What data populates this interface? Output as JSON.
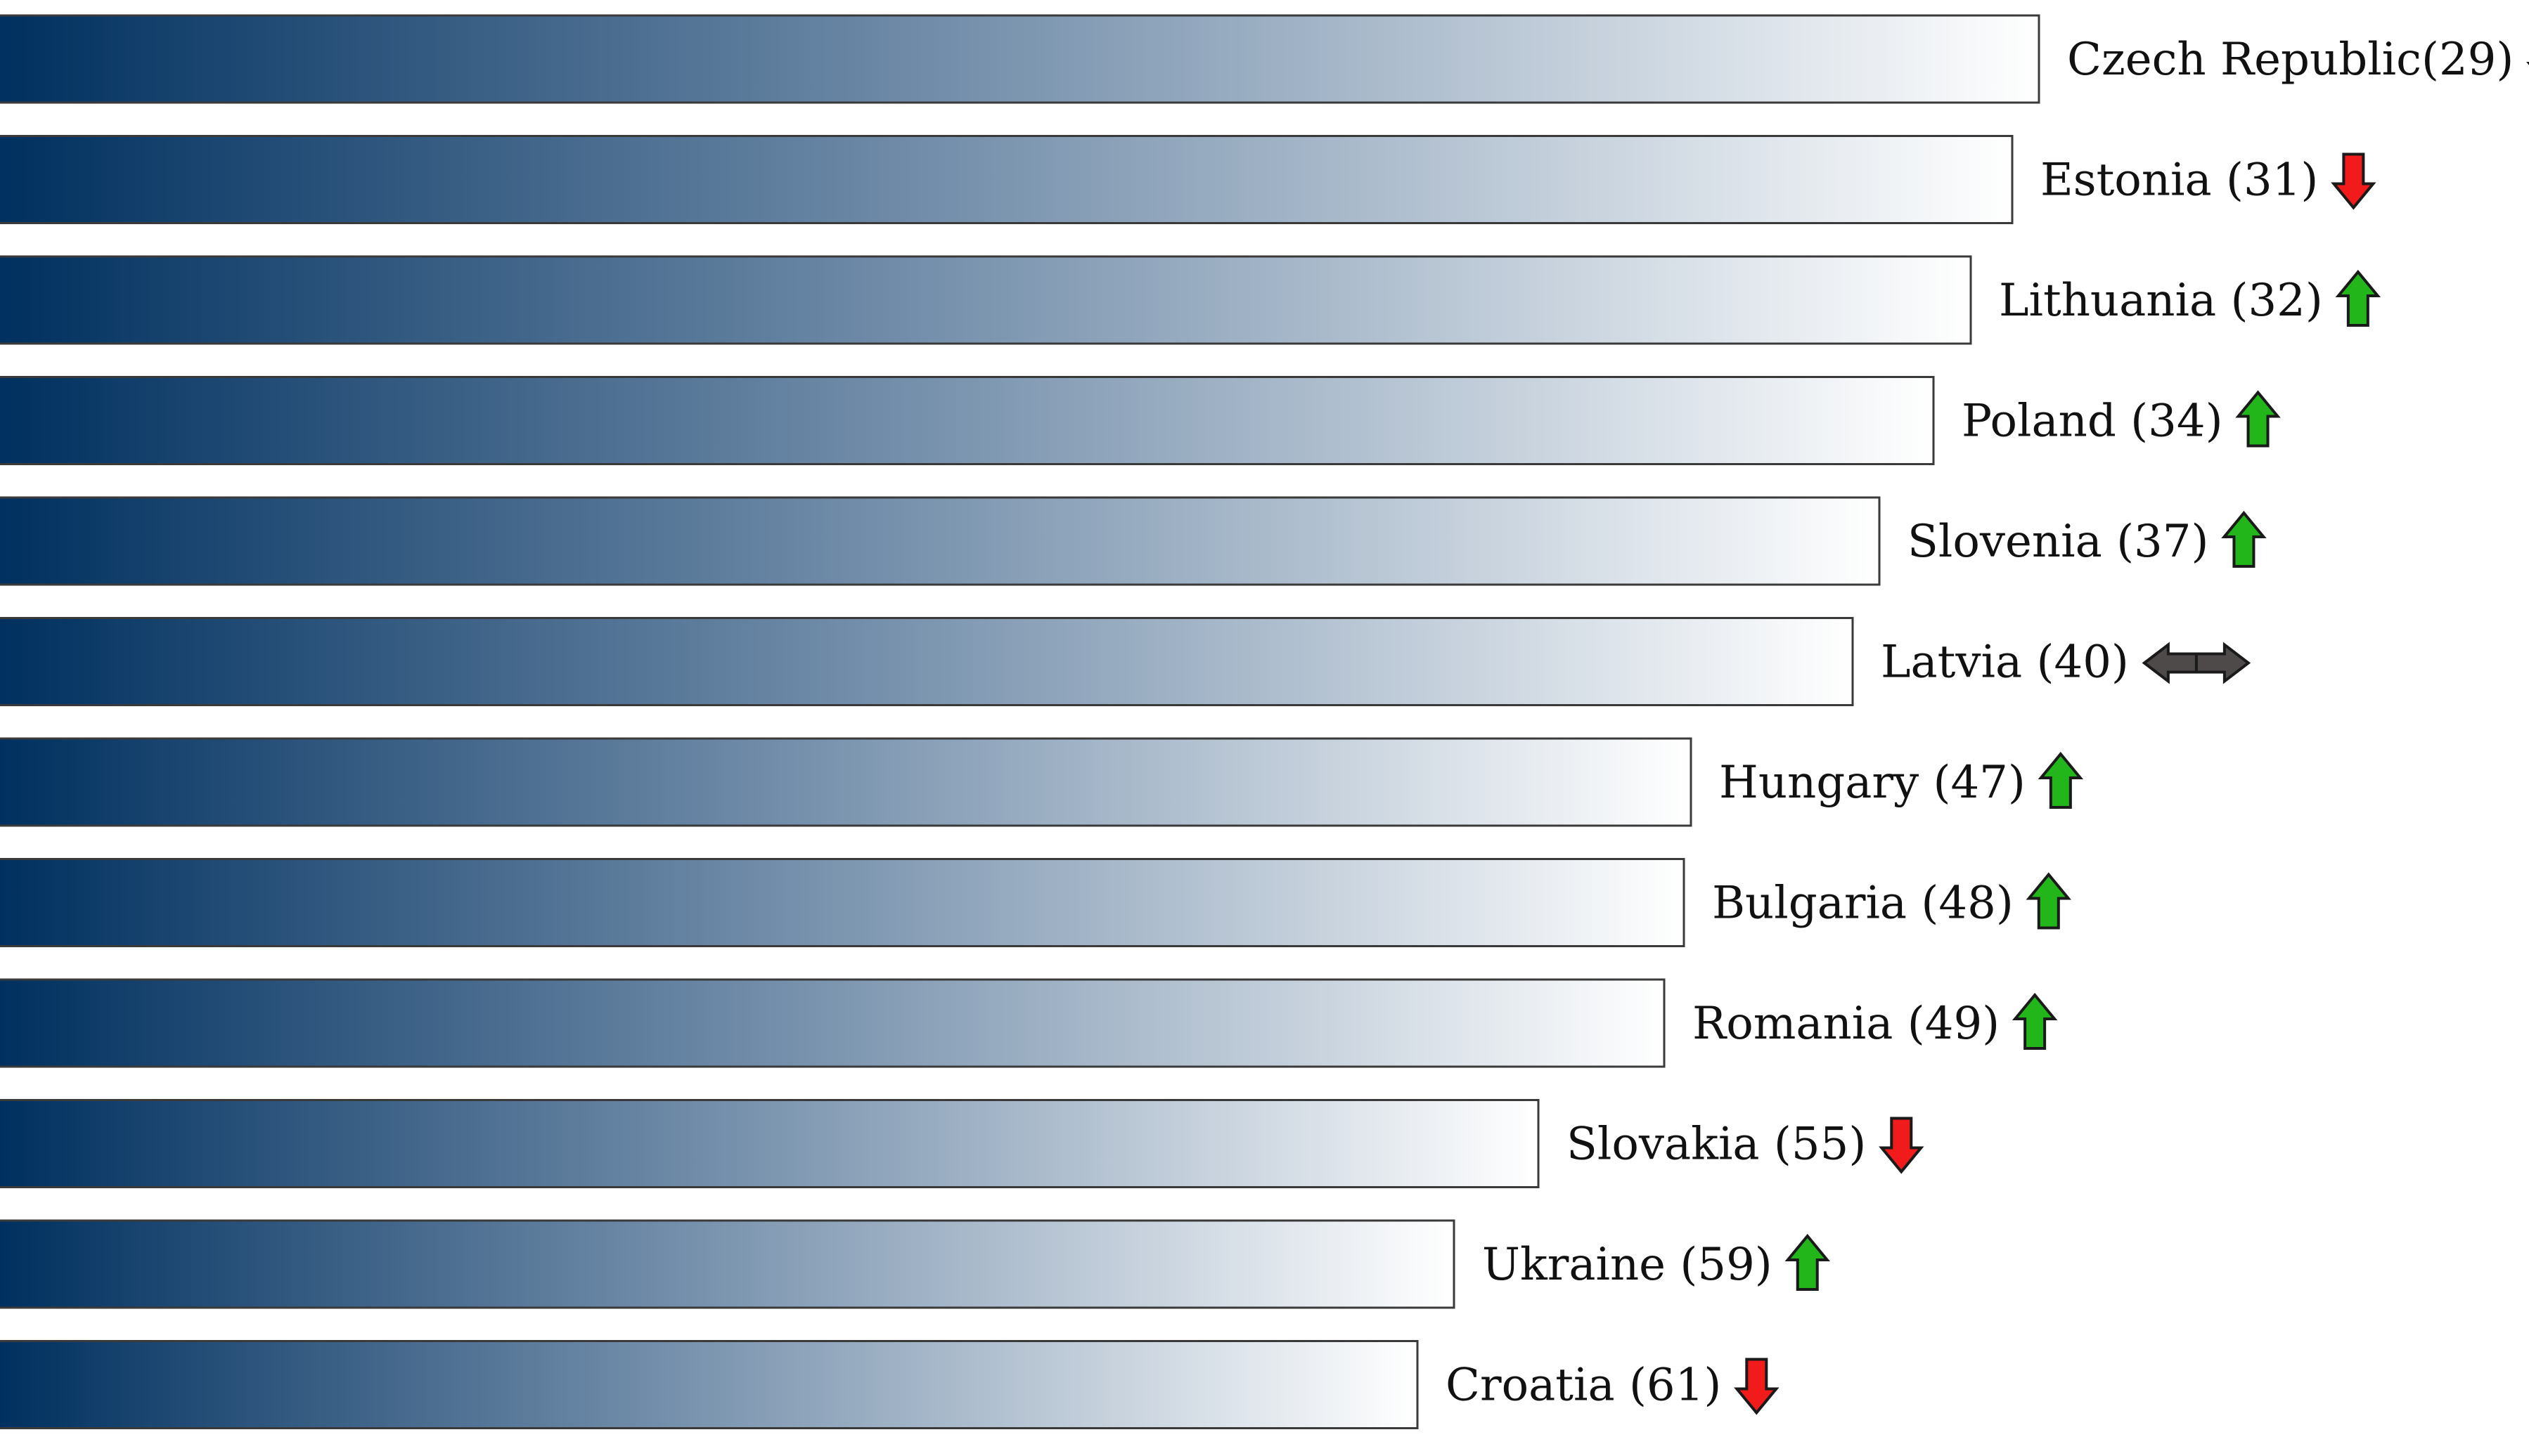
{
  "chart_data": {
    "type": "bar",
    "orientation": "horizontal",
    "title": "",
    "xlabel": "",
    "ylabel": "",
    "grid": false,
    "legend": "none",
    "colors": {
      "bar_gradient_start": "#00305f",
      "bar_gradient_end": "#ffffff",
      "bar_border": "#3a3a3a",
      "arrow_up": "#22b61b",
      "arrow_down": "#f21b1b",
      "arrow_neutral": "#4f4a4a",
      "arrow_stroke": "#1a1a1a"
    },
    "bars": [
      {
        "label": "Czech Republic(29)",
        "country": "Czech Republic",
        "rank": 29,
        "value": 2900,
        "trend": "down"
      },
      {
        "label": "Estonia (31)",
        "country": "Estonia",
        "rank": 31,
        "value": 2862,
        "trend": "down"
      },
      {
        "label": "Lithuania (32)",
        "country": "Lithuania",
        "rank": 32,
        "value": 2803,
        "trend": "up"
      },
      {
        "label": "Poland (34)",
        "country": "Poland",
        "rank": 34,
        "value": 2750,
        "trend": "up"
      },
      {
        "label": "Slovenia (37)",
        "country": "Slovenia",
        "rank": 37,
        "value": 2673,
        "trend": "up"
      },
      {
        "label": "Latvia (40)",
        "country": "Latvia",
        "rank": 40,
        "value": 2635,
        "trend": "neutral"
      },
      {
        "label": "Hungary (47)",
        "country": "Hungary",
        "rank": 47,
        "value": 2405,
        "trend": "up"
      },
      {
        "label": "Bulgaria (48)",
        "country": "Bulgaria",
        "rank": 48,
        "value": 2395,
        "trend": "up"
      },
      {
        "label": "Romania (49)",
        "country": "Romania",
        "rank": 49,
        "value": 2367,
        "trend": "up"
      },
      {
        "label": "Slovakia (55)",
        "country": "Slovakia",
        "rank": 55,
        "value": 2188,
        "trend": "down"
      },
      {
        "label": "Ukraine (59)",
        "country": "Ukraine",
        "rank": 59,
        "value": 2068,
        "trend": "up"
      },
      {
        "label": "Croatia (61)",
        "country": "Croatia",
        "rank": 61,
        "value": 2016,
        "trend": "down"
      }
    ]
  }
}
